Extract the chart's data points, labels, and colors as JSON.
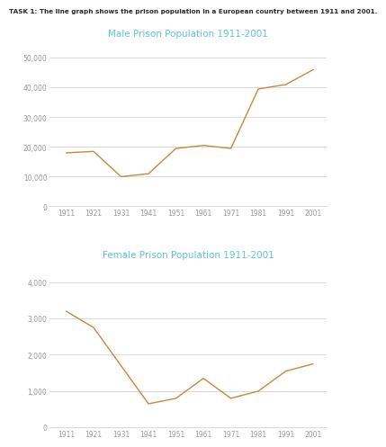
{
  "years": [
    1911,
    1921,
    1931,
    1941,
    1951,
    1961,
    1971,
    1981,
    1991,
    2001
  ],
  "male_values": [
    18000,
    18500,
    10000,
    11000,
    19500,
    20500,
    19500,
    39500,
    41000,
    46000
  ],
  "female_values": [
    3200,
    2750,
    1700,
    650,
    800,
    1350,
    800,
    1000,
    1550,
    1750
  ],
  "task_text": "TASK 1: The line graph shows the prison population in a European country between 1911 and 2001.",
  "male_title": "Male Prison Population 1911-2001",
  "female_title": "Female Prison Population 1911-2001",
  "line_color": "#C8883A",
  "title_color": "#5BC8D2",
  "task_text_color": "#2a2a2a",
  "bg_color": "#FFFFFF",
  "grid_color": "#CCCCCC",
  "tick_color": "#999999",
  "male_ylim": [
    0,
    55000
  ],
  "male_yticks": [
    0,
    10000,
    20000,
    30000,
    40000,
    50000
  ],
  "female_ylim": [
    0,
    4500
  ],
  "female_yticks": [
    0,
    1000,
    2000,
    3000,
    4000
  ],
  "task_fontsize": 5.2,
  "title_fontsize": 7.5,
  "tick_fontsize": 5.5
}
